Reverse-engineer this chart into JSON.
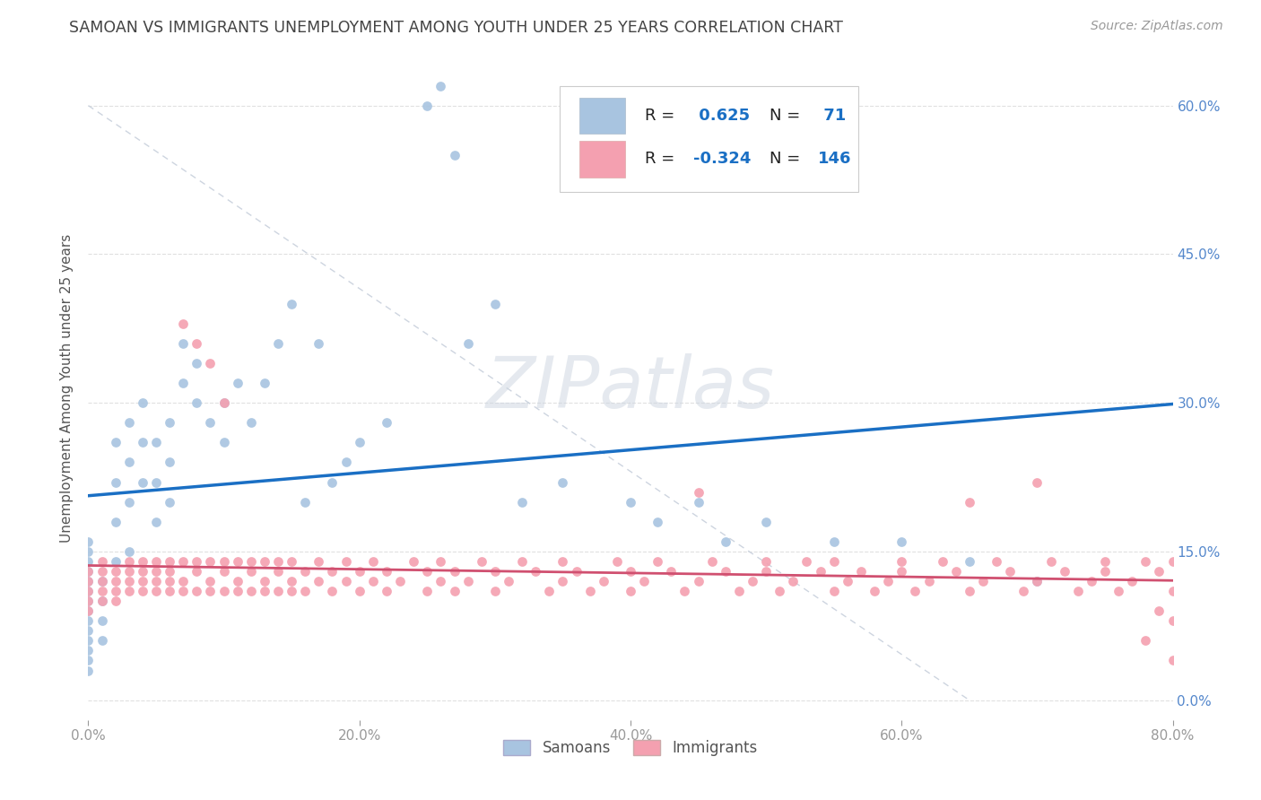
{
  "title": "SAMOAN VS IMMIGRANTS UNEMPLOYMENT AMONG YOUTH UNDER 25 YEARS CORRELATION CHART",
  "source": "Source: ZipAtlas.com",
  "ylabel": "Unemployment Among Youth under 25 years",
  "watermark": "ZIPatlas",
  "R_samoan": 0.625,
  "N_samoan": 71,
  "R_immigrant": -0.324,
  "N_immigrant": 146,
  "xlim": [
    0.0,
    0.8
  ],
  "ylim": [
    -0.02,
    0.65
  ],
  "yticks": [
    0.0,
    0.15,
    0.3,
    0.45,
    0.6
  ],
  "ytick_labels": [
    "0.0%",
    "15.0%",
    "30.0%",
    "45.0%",
    "60.0%"
  ],
  "xticks": [
    0.0,
    0.2,
    0.4,
    0.6,
    0.8
  ],
  "xtick_labels": [
    "0.0%",
    "20.0%",
    "40.0%",
    "60.0%",
    "80.0%"
  ],
  "samoan_color": "#a8c4e0",
  "immigrant_color": "#f4a0b0",
  "samoan_line_color": "#1a6fc4",
  "immigrant_line_color": "#d05070",
  "background_color": "#ffffff",
  "title_color": "#444444",
  "axis_label_color": "#555555",
  "tick_color": "#999999",
  "right_tick_color": "#5588cc",
  "grid_color": "#e0e0e0",
  "diag_color": "#c8d0dc",
  "samoan_points": [
    [
      0.0,
      0.11
    ],
    [
      0.0,
      0.1
    ],
    [
      0.0,
      0.09
    ],
    [
      0.0,
      0.08
    ],
    [
      0.0,
      0.12
    ],
    [
      0.0,
      0.07
    ],
    [
      0.0,
      0.13
    ],
    [
      0.0,
      0.06
    ],
    [
      0.0,
      0.05
    ],
    [
      0.0,
      0.04
    ],
    [
      0.0,
      0.14
    ],
    [
      0.0,
      0.15
    ],
    [
      0.0,
      0.03
    ],
    [
      0.0,
      0.16
    ],
    [
      0.01,
      0.1
    ],
    [
      0.01,
      0.12
    ],
    [
      0.01,
      0.08
    ],
    [
      0.01,
      0.06
    ],
    [
      0.02,
      0.18
    ],
    [
      0.02,
      0.22
    ],
    [
      0.02,
      0.26
    ],
    [
      0.02,
      0.14
    ],
    [
      0.03,
      0.2
    ],
    [
      0.03,
      0.24
    ],
    [
      0.03,
      0.28
    ],
    [
      0.03,
      0.15
    ],
    [
      0.04,
      0.3
    ],
    [
      0.04,
      0.26
    ],
    [
      0.04,
      0.22
    ],
    [
      0.05,
      0.18
    ],
    [
      0.05,
      0.22
    ],
    [
      0.05,
      0.26
    ],
    [
      0.06,
      0.2
    ],
    [
      0.06,
      0.24
    ],
    [
      0.06,
      0.28
    ],
    [
      0.07,
      0.32
    ],
    [
      0.07,
      0.36
    ],
    [
      0.08,
      0.3
    ],
    [
      0.08,
      0.34
    ],
    [
      0.09,
      0.28
    ],
    [
      0.1,
      0.26
    ],
    [
      0.1,
      0.3
    ],
    [
      0.11,
      0.32
    ],
    [
      0.12,
      0.28
    ],
    [
      0.13,
      0.32
    ],
    [
      0.14,
      0.36
    ],
    [
      0.15,
      0.4
    ],
    [
      0.16,
      0.2
    ],
    [
      0.17,
      0.36
    ],
    [
      0.18,
      0.22
    ],
    [
      0.19,
      0.24
    ],
    [
      0.2,
      0.26
    ],
    [
      0.22,
      0.28
    ],
    [
      0.25,
      0.6
    ],
    [
      0.26,
      0.62
    ],
    [
      0.27,
      0.55
    ],
    [
      0.28,
      0.36
    ],
    [
      0.3,
      0.4
    ],
    [
      0.32,
      0.2
    ],
    [
      0.35,
      0.22
    ],
    [
      0.4,
      0.2
    ],
    [
      0.42,
      0.18
    ],
    [
      0.45,
      0.2
    ],
    [
      0.47,
      0.16
    ],
    [
      0.5,
      0.18
    ],
    [
      0.55,
      0.16
    ],
    [
      0.6,
      0.16
    ],
    [
      0.65,
      0.14
    ],
    [
      0.7,
      0.12
    ]
  ],
  "immigrant_points": [
    [
      0.0,
      0.13
    ],
    [
      0.0,
      0.11
    ],
    [
      0.0,
      0.09
    ],
    [
      0.0,
      0.12
    ],
    [
      0.0,
      0.1
    ],
    [
      0.01,
      0.12
    ],
    [
      0.01,
      0.1
    ],
    [
      0.01,
      0.13
    ],
    [
      0.01,
      0.11
    ],
    [
      0.01,
      0.14
    ],
    [
      0.02,
      0.11
    ],
    [
      0.02,
      0.13
    ],
    [
      0.02,
      0.1
    ],
    [
      0.02,
      0.12
    ],
    [
      0.03,
      0.12
    ],
    [
      0.03,
      0.14
    ],
    [
      0.03,
      0.11
    ],
    [
      0.03,
      0.13
    ],
    [
      0.04,
      0.13
    ],
    [
      0.04,
      0.11
    ],
    [
      0.04,
      0.14
    ],
    [
      0.04,
      0.12
    ],
    [
      0.05,
      0.12
    ],
    [
      0.05,
      0.14
    ],
    [
      0.05,
      0.11
    ],
    [
      0.05,
      0.13
    ],
    [
      0.06,
      0.13
    ],
    [
      0.06,
      0.11
    ],
    [
      0.06,
      0.14
    ],
    [
      0.06,
      0.12
    ],
    [
      0.07,
      0.12
    ],
    [
      0.07,
      0.14
    ],
    [
      0.07,
      0.11
    ],
    [
      0.07,
      0.38
    ],
    [
      0.08,
      0.13
    ],
    [
      0.08,
      0.11
    ],
    [
      0.08,
      0.14
    ],
    [
      0.08,
      0.36
    ],
    [
      0.09,
      0.12
    ],
    [
      0.09,
      0.14
    ],
    [
      0.09,
      0.11
    ],
    [
      0.09,
      0.34
    ],
    [
      0.1,
      0.13
    ],
    [
      0.1,
      0.11
    ],
    [
      0.1,
      0.14
    ],
    [
      0.1,
      0.3
    ],
    [
      0.11,
      0.12
    ],
    [
      0.11,
      0.14
    ],
    [
      0.11,
      0.11
    ],
    [
      0.12,
      0.13
    ],
    [
      0.12,
      0.11
    ],
    [
      0.12,
      0.14
    ],
    [
      0.13,
      0.12
    ],
    [
      0.13,
      0.14
    ],
    [
      0.13,
      0.11
    ],
    [
      0.14,
      0.13
    ],
    [
      0.14,
      0.11
    ],
    [
      0.14,
      0.14
    ],
    [
      0.15,
      0.12
    ],
    [
      0.15,
      0.14
    ],
    [
      0.15,
      0.11
    ],
    [
      0.16,
      0.13
    ],
    [
      0.16,
      0.11
    ],
    [
      0.17,
      0.12
    ],
    [
      0.17,
      0.14
    ],
    [
      0.18,
      0.13
    ],
    [
      0.18,
      0.11
    ],
    [
      0.19,
      0.12
    ],
    [
      0.19,
      0.14
    ],
    [
      0.2,
      0.13
    ],
    [
      0.2,
      0.11
    ],
    [
      0.21,
      0.12
    ],
    [
      0.21,
      0.14
    ],
    [
      0.22,
      0.13
    ],
    [
      0.22,
      0.11
    ],
    [
      0.23,
      0.12
    ],
    [
      0.24,
      0.14
    ],
    [
      0.25,
      0.13
    ],
    [
      0.25,
      0.11
    ],
    [
      0.26,
      0.12
    ],
    [
      0.26,
      0.14
    ],
    [
      0.27,
      0.13
    ],
    [
      0.27,
      0.11
    ],
    [
      0.28,
      0.12
    ],
    [
      0.29,
      0.14
    ],
    [
      0.3,
      0.13
    ],
    [
      0.3,
      0.11
    ],
    [
      0.31,
      0.12
    ],
    [
      0.32,
      0.14
    ],
    [
      0.33,
      0.13
    ],
    [
      0.34,
      0.11
    ],
    [
      0.35,
      0.12
    ],
    [
      0.35,
      0.14
    ],
    [
      0.36,
      0.13
    ],
    [
      0.37,
      0.11
    ],
    [
      0.38,
      0.12
    ],
    [
      0.39,
      0.14
    ],
    [
      0.4,
      0.13
    ],
    [
      0.4,
      0.11
    ],
    [
      0.41,
      0.12
    ],
    [
      0.42,
      0.14
    ],
    [
      0.43,
      0.13
    ],
    [
      0.44,
      0.11
    ],
    [
      0.45,
      0.12
    ],
    [
      0.45,
      0.21
    ],
    [
      0.46,
      0.14
    ],
    [
      0.47,
      0.13
    ],
    [
      0.48,
      0.11
    ],
    [
      0.49,
      0.12
    ],
    [
      0.5,
      0.14
    ],
    [
      0.5,
      0.13
    ],
    [
      0.51,
      0.11
    ],
    [
      0.52,
      0.12
    ],
    [
      0.53,
      0.14
    ],
    [
      0.54,
      0.13
    ],
    [
      0.55,
      0.11
    ],
    [
      0.55,
      0.14
    ],
    [
      0.56,
      0.12
    ],
    [
      0.57,
      0.13
    ],
    [
      0.58,
      0.11
    ],
    [
      0.59,
      0.12
    ],
    [
      0.6,
      0.14
    ],
    [
      0.6,
      0.13
    ],
    [
      0.61,
      0.11
    ],
    [
      0.62,
      0.12
    ],
    [
      0.63,
      0.14
    ],
    [
      0.64,
      0.13
    ],
    [
      0.65,
      0.2
    ],
    [
      0.65,
      0.11
    ],
    [
      0.66,
      0.12
    ],
    [
      0.67,
      0.14
    ],
    [
      0.68,
      0.13
    ],
    [
      0.69,
      0.11
    ],
    [
      0.7,
      0.22
    ],
    [
      0.7,
      0.12
    ],
    [
      0.71,
      0.14
    ],
    [
      0.72,
      0.13
    ],
    [
      0.73,
      0.11
    ],
    [
      0.74,
      0.12
    ],
    [
      0.75,
      0.14
    ],
    [
      0.75,
      0.13
    ],
    [
      0.76,
      0.11
    ],
    [
      0.77,
      0.12
    ],
    [
      0.78,
      0.14
    ],
    [
      0.78,
      0.06
    ],
    [
      0.79,
      0.13
    ],
    [
      0.79,
      0.09
    ],
    [
      0.8,
      0.11
    ],
    [
      0.8,
      0.14
    ],
    [
      0.8,
      0.08
    ],
    [
      0.8,
      0.04
    ]
  ]
}
